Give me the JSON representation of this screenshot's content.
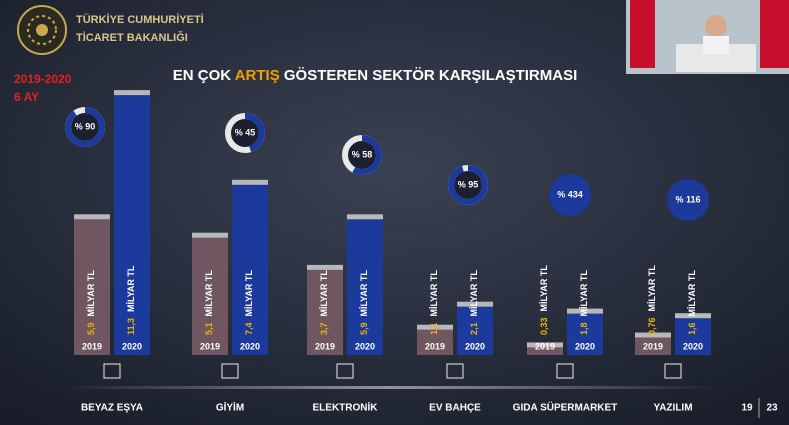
{
  "header": {
    "line1": "TÜRKİYE CUMHURİYETİ",
    "line2": "TİCARET BAKANLIĞI"
  },
  "period": {
    "line1": "2019-2020",
    "line2": "6 AY"
  },
  "page": {
    "current": "19",
    "total": "23"
  },
  "chart_data": {
    "type": "bar",
    "title": [
      "EN ÇOK",
      "ARTIŞ",
      "GÖSTEREN SEKTÖR KARŞILAŞTIRMASI"
    ],
    "categories": [
      "BEYAZ EŞYA",
      "GİYİM",
      "ELEKTRONİK",
      "EV BAHÇE",
      "GIDA SÜPERMARKET",
      "YAZILIM"
    ],
    "unit": "MİLYAR TL",
    "series": [
      {
        "name": "2019",
        "color": "#6f5660",
        "values": [
          5.9,
          5.1,
          3.7,
          1.1,
          0.33,
          0.76
        ],
        "value_labels": [
          "5,9",
          "5,1",
          "3,7",
          "1,1",
          "0,33",
          "0,76"
        ]
      },
      {
        "name": "2020",
        "color": "#1c3a9c",
        "values": [
          11.3,
          7.4,
          5.9,
          2.1,
          1.8,
          1.6
        ],
        "value_labels": [
          "11,3",
          "7,4",
          "5,9",
          "2,1",
          "1,8",
          "1,6"
        ]
      }
    ],
    "growth": {
      "values": [
        90,
        45,
        58,
        95,
        434,
        116
      ],
      "value_labels": [
        "% 90",
        "% 45",
        "% 58",
        "% 95",
        "% 434",
        "% 116"
      ]
    }
  }
}
